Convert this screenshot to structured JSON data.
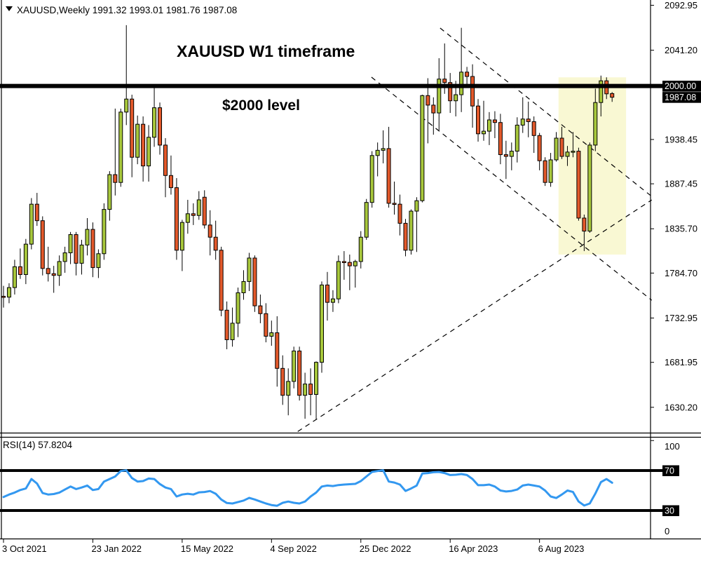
{
  "header": {
    "symbol_info": "XAUUSD,Weekly  1991.32 1993.01 1981.76 1987.08"
  },
  "annotations": {
    "title": "XAUUSD W1 timeframe",
    "level_label": "$2000 level"
  },
  "rsi_panel": {
    "indicator_label": "RSI(14) 57.8204"
  },
  "chart_data": {
    "type": "candlestick",
    "symbol": "XAUUSD",
    "timeframe": "Weekly",
    "last_bar": {
      "open": 1991.32,
      "high": 1993.01,
      "low": 1981.76,
      "close": 1987.08
    },
    "price_axis": {
      "max": 2099,
      "min": 1601,
      "tick_labels": [
        2092.95,
        2041.2,
        1938.45,
        1887.45,
        1835.7,
        1784.7,
        1732.95,
        1681.95,
        1630.2
      ]
    },
    "level_line": {
      "price": 2000,
      "label": "$2000 level"
    },
    "badges": [
      {
        "text": "2000.00",
        "price": 2000.0
      },
      {
        "text": "1987.08",
        "price": 1987.08
      }
    ],
    "time_axis": {
      "tick_labels": [
        {
          "text": "3 Oct 2021",
          "week": 0
        },
        {
          "text": "23 Jan 2022",
          "week": 16
        },
        {
          "text": "15 May 2022",
          "week": 32
        },
        {
          "text": "4 Sep 2022",
          "week": 48
        },
        {
          "text": "25 Dec 2022",
          "week": 64
        },
        {
          "text": "16 Apr 2023",
          "week": 80
        },
        {
          "text": "6 Aug 2023",
          "week": 96
        }
      ]
    },
    "ohlc": [
      [
        1758,
        1770,
        1745,
        1757
      ],
      [
        1757,
        1773,
        1750,
        1768
      ],
      [
        1768,
        1800,
        1760,
        1792
      ],
      [
        1792,
        1813,
        1778,
        1783
      ],
      [
        1783,
        1824,
        1772,
        1818
      ],
      [
        1818,
        1871,
        1812,
        1864
      ],
      [
        1864,
        1877,
        1839,
        1845
      ],
      [
        1845,
        1850,
        1782,
        1790
      ],
      [
        1790,
        1815,
        1775,
        1784
      ],
      [
        1784,
        1793,
        1762,
        1782
      ],
      [
        1782,
        1805,
        1770,
        1798
      ],
      [
        1798,
        1815,
        1785,
        1808
      ],
      [
        1808,
        1832,
        1795,
        1829
      ],
      [
        1829,
        1832,
        1782,
        1796
      ],
      [
        1796,
        1823,
        1783,
        1817
      ],
      [
        1817,
        1848,
        1805,
        1835
      ],
      [
        1835,
        1843,
        1780,
        1791
      ],
      [
        1791,
        1812,
        1779,
        1807
      ],
      [
        1807,
        1865,
        1800,
        1858
      ],
      [
        1858,
        1902,
        1845,
        1898
      ],
      [
        1898,
        1974,
        1874,
        1889
      ],
      [
        1889,
        1974,
        1884,
        1970
      ],
      [
        1970,
        2070,
        1955,
        1985
      ],
      [
        1985,
        1990,
        1895,
        1918
      ],
      [
        1918,
        1966,
        1910,
        1956
      ],
      [
        1956,
        1965,
        1890,
        1908
      ],
      [
        1908,
        1955,
        1890,
        1941
      ],
      [
        1941,
        1998,
        1930,
        1975
      ],
      [
        1975,
        1981,
        1921,
        1932
      ],
      [
        1932,
        1940,
        1872,
        1897
      ],
      [
        1897,
        1920,
        1875,
        1883
      ],
      [
        1883,
        1894,
        1800,
        1811
      ],
      [
        1811,
        1846,
        1787,
        1843
      ],
      [
        1843,
        1869,
        1830,
        1853
      ],
      [
        1853,
        1865,
        1840,
        1851
      ],
      [
        1851,
        1879,
        1846,
        1869
      ],
      [
        1872,
        1880,
        1836,
        1840
      ],
      [
        1840,
        1857,
        1805,
        1826
      ],
      [
        1826,
        1845,
        1800,
        1811
      ],
      [
        1811,
        1815,
        1735,
        1742
      ],
      [
        1742,
        1752,
        1697,
        1708
      ],
      [
        1708,
        1745,
        1700,
        1727
      ],
      [
        1727,
        1768,
        1711,
        1762
      ],
      [
        1762,
        1788,
        1754,
        1775
      ],
      [
        1775,
        1808,
        1764,
        1802
      ],
      [
        1802,
        1805,
        1740,
        1747
      ],
      [
        1747,
        1760,
        1727,
        1738
      ],
      [
        1738,
        1750,
        1705,
        1712
      ],
      [
        1712,
        1730,
        1701,
        1716
      ],
      [
        1716,
        1735,
        1654,
        1675
      ],
      [
        1675,
        1690,
        1633,
        1644
      ],
      [
        1644,
        1675,
        1621,
        1660
      ],
      [
        1660,
        1700,
        1652,
        1695
      ],
      [
        1695,
        1700,
        1638,
        1644
      ],
      [
        1644,
        1670,
        1617,
        1657
      ],
      [
        1657,
        1675,
        1621,
        1645
      ],
      [
        1645,
        1683,
        1616,
        1682
      ],
      [
        1682,
        1775,
        1670,
        1771
      ],
      [
        1771,
        1786,
        1730,
        1751
      ],
      [
        1751,
        1765,
        1740,
        1755
      ],
      [
        1755,
        1805,
        1750,
        1798
      ],
      [
        1798,
        1810,
        1777,
        1797
      ],
      [
        1797,
        1806,
        1765,
        1793
      ],
      [
        1793,
        1800,
        1768,
        1798
      ],
      [
        1798,
        1833,
        1790,
        1826
      ],
      [
        1826,
        1870,
        1823,
        1866
      ],
      [
        1866,
        1925,
        1860,
        1920
      ],
      [
        1920,
        1935,
        1896,
        1926
      ],
      [
        1926,
        1949,
        1911,
        1928
      ],
      [
        1928,
        1953,
        1860,
        1865
      ],
      [
        1865,
        1890,
        1852,
        1864
      ],
      [
        1864,
        1875,
        1828,
        1842
      ],
      [
        1842,
        1847,
        1804,
        1811
      ],
      [
        1811,
        1858,
        1806,
        1856
      ],
      [
        1856,
        1872,
        1809,
        1868
      ],
      [
        1868,
        1990,
        1866,
        1989
      ],
      [
        1989,
        2009,
        1934,
        1978
      ],
      [
        1978,
        1987,
        1944,
        1969
      ],
      [
        1969,
        2032,
        1949,
        2008
      ],
      [
        2008,
        2049,
        1991,
        2004
      ],
      [
        2004,
        2015,
        1969,
        1983
      ],
      [
        1983,
        2006,
        1965,
        1990
      ],
      [
        1990,
        2067,
        1970,
        2016
      ],
      [
        2016,
        2022,
        1999,
        2011
      ],
      [
        2011,
        2025,
        1952,
        1977
      ],
      [
        1977,
        1985,
        1936,
        1945
      ],
      [
        1945,
        1983,
        1937,
        1948
      ],
      [
        1948,
        1970,
        1932,
        1961
      ],
      [
        1961,
        1971,
        1940,
        1958
      ],
      [
        1958,
        1968,
        1910,
        1921
      ],
      [
        1921,
        1937,
        1893,
        1919
      ],
      [
        1919,
        1935,
        1903,
        1925
      ],
      [
        1925,
        1964,
        1912,
        1955
      ],
      [
        1955,
        1987,
        1946,
        1962
      ],
      [
        1962,
        1982,
        1941,
        1959
      ],
      [
        1959,
        1965,
        1923,
        1943
      ],
      [
        1943,
        1946,
        1903,
        1914
      ],
      [
        1914,
        1918,
        1885,
        1889
      ],
      [
        1889,
        1923,
        1884,
        1915
      ],
      [
        1915,
        1947,
        1913,
        1940
      ],
      [
        1940,
        1953,
        1916,
        1919
      ],
      [
        1919,
        1931,
        1908,
        1924
      ],
      [
        1924,
        1947,
        1918,
        1925
      ],
      [
        1925,
        1929,
        1845,
        1848
      ],
      [
        1848,
        1852,
        1810,
        1833
      ],
      [
        1833,
        1935,
        1831,
        1932
      ],
      [
        1932,
        1997,
        1925,
        1981
      ],
      [
        1981,
        2012,
        1965,
        2006
      ],
      [
        2006,
        2010,
        1985,
        1991
      ],
      [
        1991.32,
        1993.01,
        1981.76,
        1987.08
      ]
    ],
    "rsi": {
      "period": 14,
      "current": 57.8204,
      "upper_level": 70,
      "lower_level": 30,
      "scale_max": 100,
      "scale_min": 0,
      "values": [
        43.5,
        46,
        48,
        50.5,
        52,
        61.5,
        57,
        47.5,
        46,
        46.5,
        48,
        51,
        54,
        51.5,
        53,
        55,
        50.5,
        51.5,
        59,
        61.5,
        64,
        69.5,
        70.3,
        62.5,
        59,
        59.5,
        62,
        61.5,
        56.5,
        53,
        51.5,
        44,
        46,
        46.8,
        46,
        48.2,
        48.5,
        49.5,
        46.8,
        41,
        37.5,
        37,
        38.5,
        40,
        42.6,
        41,
        39,
        37,
        35.5,
        34.8,
        37.7,
        39,
        37.7,
        37,
        39,
        44,
        48,
        54,
        55,
        54.5,
        55.5,
        56,
        56.3,
        56.7,
        59.5,
        64,
        68.6,
        69.5,
        70.3,
        59,
        58,
        56,
        49.6,
        52,
        55,
        67,
        67.5,
        68.3,
        68.6,
        67.5,
        65.5,
        65.8,
        66.5,
        65.5,
        61.5,
        55.3,
        55.3,
        56,
        54,
        50,
        49,
        49.6,
        51,
        55,
        56,
        55,
        54,
        50,
        44,
        42.5,
        46,
        50,
        48.5,
        39,
        35,
        37,
        47,
        58.5,
        61.5,
        57.82
      ]
    },
    "highlight": {
      "bar_from": 99.4,
      "bar_to": 111.5,
      "price_from": 2010,
      "price_to": 1806
    },
    "trendlines": [
      {
        "name": "upper-channel-resistance",
        "bar1": 78.2,
        "price1": 2066.7,
        "bar2": 116.1,
        "price2": 1872.9
      },
      {
        "name": "lower-channel-resistance",
        "bar1": 65.9,
        "price1": 2010.2,
        "bar2": 116.1,
        "price2": 1753.4
      },
      {
        "name": "rising-support",
        "bar1": 52.7,
        "price1": 1602.3,
        "bar2": 116.1,
        "price2": 1868.9
      }
    ],
    "colors": {
      "bull": "#A8C83C",
      "bear": "#E3592B",
      "wick": "#000000",
      "rsi_line": "#3398F0",
      "level_line": "#000000",
      "highlight": "#F8F6C8",
      "badge_bg": "#000000",
      "badge_text": "#ffffff"
    }
  }
}
